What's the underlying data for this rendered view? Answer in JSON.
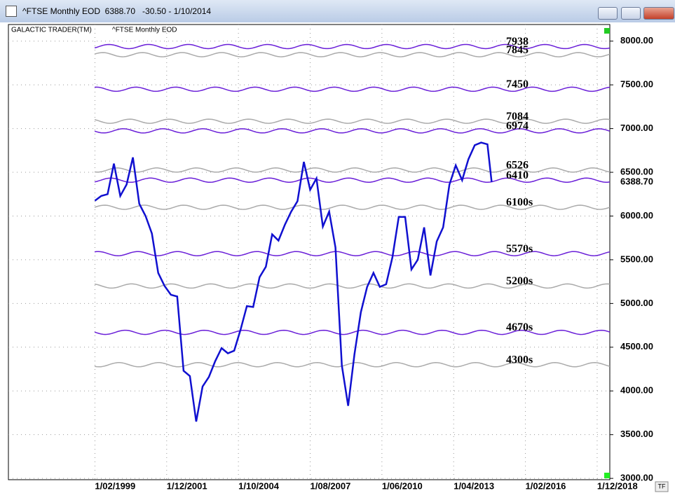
{
  "window": {
    "title": "^FTSE Monthly EOD  6388.70   -30.50 - 1/10/2014",
    "tf_button": "TF"
  },
  "chart_data": {
    "type": "line",
    "brand": "GALACTIC TRADER(TM)",
    "title": "^FTSE Monthly EOD",
    "color": "#1010d0",
    "x": [
      "1/02/1999",
      "1/05/1999",
      "1/08/1999",
      "1/11/1999",
      "1/02/2000",
      "1/05/2000",
      "1/08/2000",
      "1/11/2000",
      "1/02/2001",
      "1/05/2001",
      "1/08/2001",
      "1/11/2001",
      "1/02/2002",
      "1/05/2002",
      "1/08/2002",
      "1/11/2002",
      "1/02/2003",
      "1/05/2003",
      "1/08/2003",
      "1/11/2003",
      "1/02/2004",
      "1/05/2004",
      "1/08/2004",
      "1/11/2004",
      "1/02/2005",
      "1/05/2005",
      "1/08/2005",
      "1/11/2005",
      "1/02/2006",
      "1/05/2006",
      "1/08/2006",
      "1/11/2006",
      "1/02/2007",
      "1/05/2007",
      "1/08/2007",
      "1/11/2007",
      "1/02/2008",
      "1/05/2008",
      "1/08/2008",
      "1/11/2008",
      "1/02/2009",
      "1/05/2009",
      "1/08/2009",
      "1/11/2009",
      "1/02/2010",
      "1/05/2010",
      "1/08/2010",
      "1/11/2010",
      "1/02/2011",
      "1/05/2011",
      "1/08/2011",
      "1/11/2011",
      "1/02/2012",
      "1/05/2012",
      "1/08/2012",
      "1/11/2012",
      "1/02/2013",
      "1/05/2013",
      "1/08/2013",
      "1/11/2013",
      "1/02/2014",
      "1/05/2014",
      "1/08/2014",
      "1/10/2014"
    ],
    "values": [
      6175,
      6230,
      6250,
      6600,
      6230,
      6360,
      6670,
      6140,
      6000,
      5800,
      5350,
      5200,
      5100,
      5080,
      4230,
      4170,
      3650,
      4050,
      4160,
      4340,
      4490,
      4430,
      4460,
      4700,
      4970,
      4960,
      5300,
      5420,
      5790,
      5720,
      5900,
      6050,
      6170,
      6620,
      6300,
      6430,
      5880,
      6050,
      5640,
      4290,
      3830,
      4420,
      4900,
      5190,
      5350,
      5190,
      5220,
      5530,
      5990,
      5990,
      5390,
      5500,
      5870,
      5320,
      5710,
      5870,
      6360,
      6580,
      6410,
      6650,
      6810,
      6840,
      6820,
      6388.7
    ],
    "xlim": [
      "1/09/1995",
      "1/06/2019"
    ],
    "xticks": [
      "1/02/1999",
      "1/12/2001",
      "1/10/2004",
      "1/08/2007",
      "1/06/2010",
      "1/04/2013",
      "1/02/2016",
      "1/12/2018"
    ],
    "ylim": [
      2985,
      8190
    ],
    "yticks": [
      {
        "value": 3000,
        "label": "3000.00"
      },
      {
        "value": 3500,
        "label": "3500.00"
      },
      {
        "value": 4000,
        "label": "4000.00"
      },
      {
        "value": 4500,
        "label": "4500.00"
      },
      {
        "value": 5000,
        "label": "5000.00"
      },
      {
        "value": 5500,
        "label": "5500.00"
      },
      {
        "value": 6000,
        "label": "6000.00"
      },
      {
        "value": 6500,
        "label": "6500.00"
      },
      {
        "value": 7000,
        "label": "7000.00"
      },
      {
        "value": 7500,
        "label": "7500.00"
      },
      {
        "value": 8000,
        "label": "8000.00"
      }
    ],
    "last_price": {
      "value": 6388.7,
      "label": "6388.70"
    },
    "levels": [
      7938,
      7845,
      7450,
      7084,
      6974,
      6526,
      6410,
      {
        "value": 6100,
        "label": "6100s"
      },
      {
        "value": 5570,
        "label": "5570s"
      },
      {
        "value": 5200,
        "label": "5200s"
      },
      {
        "value": 4670,
        "label": "4670s"
      },
      {
        "value": 4300,
        "label": "4300s"
      }
    ],
    "grid": true
  }
}
